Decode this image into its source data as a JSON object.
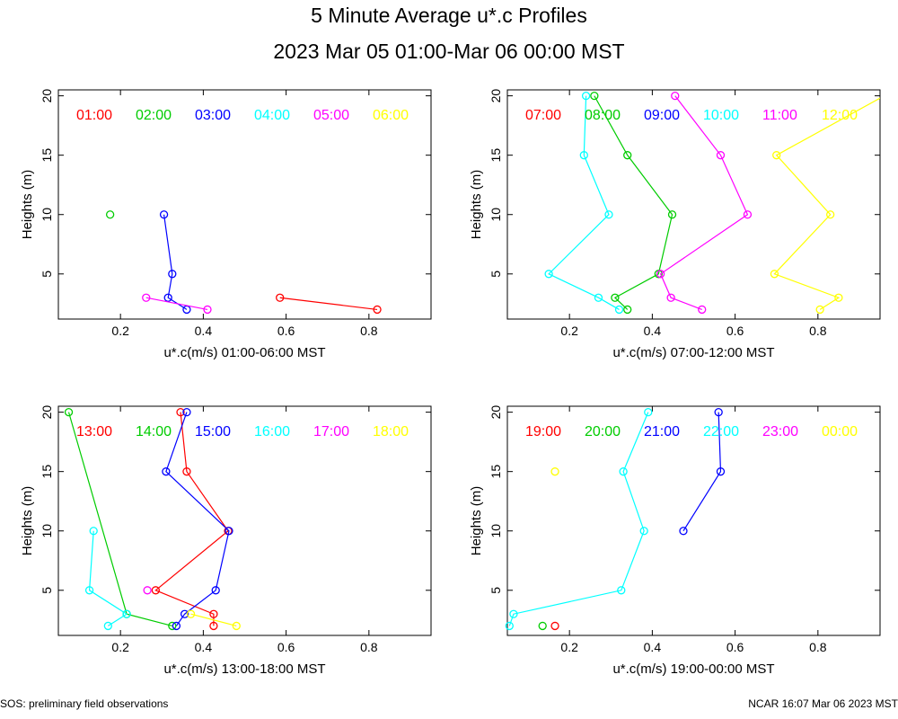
{
  "header": {
    "title": "5 Minute Average u*.c Profiles",
    "subtitle": "2023 Mar 05 01:00-Mar 06 00:00 MST"
  },
  "footer": {
    "left": "SOS: preliminary field observations",
    "right": "NCAR 16:07 Mar 06 2023 MST"
  },
  "chart_data": [
    {
      "type": "line",
      "xlabel": "u*.c(m/s) 01:00-06:00 MST",
      "ylabel": "Heights (m)",
      "xlim": [
        0.05,
        0.95
      ],
      "ylim": [
        1.2,
        20.5
      ],
      "xticks": [
        "0.2",
        "0.4",
        "0.6",
        "0.8"
      ],
      "yticks": [
        "5",
        "10",
        "15",
        "20"
      ],
      "legend": [
        "01:00",
        "02:00",
        "03:00",
        "04:00",
        "05:00",
        "06:00"
      ],
      "series": [
        {
          "name": "01:00",
          "color": "#ff0000",
          "points": [
            [
              0.82,
              2
            ],
            [
              0.585,
              3
            ]
          ]
        },
        {
          "name": "02:00",
          "color": "#00cc00",
          "points": [
            [
              0.175,
              10
            ]
          ]
        },
        {
          "name": "03:00",
          "color": "#0000ff",
          "points": [
            [
              0.36,
              2
            ],
            [
              0.315,
              3
            ],
            [
              0.325,
              5
            ],
            [
              0.305,
              10
            ]
          ]
        },
        {
          "name": "04:00",
          "color": "#00ffff",
          "points": []
        },
        {
          "name": "05:00",
          "color": "#ff00ff",
          "points": [
            [
              0.41,
              2
            ],
            [
              0.262,
              3
            ]
          ]
        },
        {
          "name": "06:00",
          "color": "#ffff00",
          "points": []
        }
      ]
    },
    {
      "type": "line",
      "xlabel": "u*.c(m/s) 07:00-12:00 MST",
      "ylabel": "Heights (m)",
      "xlim": [
        0.05,
        0.95
      ],
      "ylim": [
        1.2,
        20.5
      ],
      "xticks": [
        "0.2",
        "0.4",
        "0.6",
        "0.8"
      ],
      "yticks": [
        "5",
        "10",
        "15",
        "20"
      ],
      "legend": [
        "07:00",
        "08:00",
        "09:00",
        "10:00",
        "11:00",
        "12:00"
      ],
      "series": [
        {
          "name": "07:00",
          "color": "#ff0000",
          "points": []
        },
        {
          "name": "08:00",
          "color": "#00cc00",
          "points": [
            [
              0.34,
              2
            ],
            [
              0.31,
              3
            ],
            [
              0.415,
              5
            ],
            [
              0.448,
              10
            ],
            [
              0.34,
              15
            ],
            [
              0.26,
              20
            ]
          ]
        },
        {
          "name": "09:00",
          "color": "#0000ff",
          "points": []
        },
        {
          "name": "10:00",
          "color": "#00ffff",
          "points": [
            [
              0.32,
              2
            ],
            [
              0.27,
              3
            ],
            [
              0.15,
              5
            ],
            [
              0.295,
              10
            ],
            [
              0.235,
              15
            ],
            [
              0.24,
              20
            ]
          ]
        },
        {
          "name": "11:00",
          "color": "#ff00ff",
          "points": [
            [
              0.52,
              2
            ],
            [
              0.445,
              3
            ],
            [
              0.42,
              5
            ],
            [
              0.63,
              10
            ],
            [
              0.565,
              15
            ],
            [
              0.455,
              20
            ]
          ]
        },
        {
          "name": "12:00",
          "color": "#ffff00",
          "points": [
            [
              0.805,
              2
            ],
            [
              0.85,
              3
            ],
            [
              0.695,
              5
            ],
            [
              0.83,
              10
            ],
            [
              0.7,
              15
            ],
            [
              0.96,
              20
            ]
          ]
        }
      ]
    },
    {
      "type": "line",
      "xlabel": "u*.c(m/s) 13:00-18:00 MST",
      "ylabel": "Heights (m)",
      "xlim": [
        0.05,
        0.95
      ],
      "ylim": [
        1.2,
        20.5
      ],
      "xticks": [
        "0.2",
        "0.4",
        "0.6",
        "0.8"
      ],
      "yticks": [
        "5",
        "10",
        "15",
        "20"
      ],
      "legend": [
        "13:00",
        "14:00",
        "15:00",
        "16:00",
        "17:00",
        "18:00"
      ],
      "series": [
        {
          "name": "13:00",
          "color": "#ff0000",
          "points": [
            [
              0.425,
              2
            ],
            [
              0.425,
              3
            ],
            [
              0.285,
              5
            ],
            [
              0.46,
              10
            ],
            [
              0.36,
              15
            ],
            [
              0.345,
              20
            ]
          ]
        },
        {
          "name": "14:00",
          "color": "#00cc00",
          "points": [
            [
              0.325,
              2
            ],
            [
              0.215,
              3
            ],
            [
              0.075,
              20
            ]
          ]
        },
        {
          "name": "15:00",
          "color": "#0000ff",
          "points": [
            [
              0.335,
              2
            ],
            [
              0.355,
              3
            ],
            [
              0.43,
              5
            ],
            [
              0.462,
              10
            ],
            [
              0.31,
              15
            ],
            [
              0.36,
              20
            ]
          ]
        },
        {
          "name": "16:00",
          "color": "#00ffff",
          "points": [
            [
              0.17,
              2
            ],
            [
              0.215,
              3
            ],
            [
              0.125,
              5
            ],
            [
              0.135,
              10
            ]
          ]
        },
        {
          "name": "17:00",
          "color": "#ff00ff",
          "points": [
            [
              0.265,
              5
            ]
          ]
        },
        {
          "name": "18:00",
          "color": "#ffff00",
          "points": [
            [
              0.48,
              2
            ],
            [
              0.37,
              3
            ]
          ]
        }
      ]
    },
    {
      "type": "line",
      "xlabel": "u*.c(m/s) 19:00-00:00 MST",
      "ylabel": "Heights (m)",
      "xlim": [
        0.05,
        0.95
      ],
      "ylim": [
        1.2,
        20.5
      ],
      "xticks": [
        "0.2",
        "0.4",
        "0.6",
        "0.8"
      ],
      "yticks": [
        "5",
        "10",
        "15",
        "20"
      ],
      "legend": [
        "19:00",
        "20:00",
        "21:00",
        "22:00",
        "23:00",
        "00:00"
      ],
      "series": [
        {
          "name": "19:00",
          "color": "#ff0000",
          "points": [
            [
              0.165,
              2
            ]
          ]
        },
        {
          "name": "20:00",
          "color": "#00cc00",
          "points": [
            [
              0.135,
              2
            ]
          ]
        },
        {
          "name": "21:00",
          "color": "#0000ff",
          "points": [
            [
              0.475,
              10
            ],
            [
              0.565,
              15
            ],
            [
              0.56,
              20
            ]
          ]
        },
        {
          "name": "22:00",
          "color": "#00ffff",
          "points": [
            [
              0.055,
              2
            ],
            [
              0.065,
              3
            ],
            [
              0.325,
              5
            ],
            [
              0.38,
              10
            ],
            [
              0.33,
              15
            ],
            [
              0.39,
              20
            ]
          ]
        },
        {
          "name": "23:00",
          "color": "#ff00ff",
          "points": []
        },
        {
          "name": "00:00",
          "color": "#ffff00",
          "points": [
            [
              0.165,
              15
            ]
          ]
        }
      ]
    }
  ]
}
